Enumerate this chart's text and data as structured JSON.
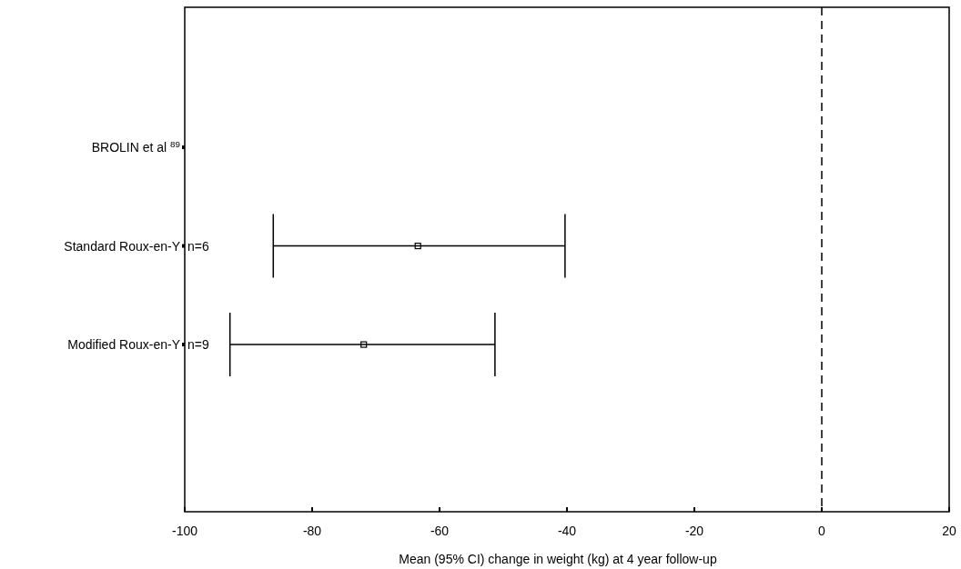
{
  "chart_data": {
    "type": "scatter",
    "orientation": "horizontal",
    "categories": [
      "BROLIN et al $^{89}$",
      "Standard Roux-en-Y",
      "Modified Roux-en-Y"
    ],
    "values": [
      null,
      -63.4,
      -71.9
    ],
    "errors": [
      null,
      [
        -86.1,
        -40.3
      ],
      [
        -92.9,
        -51.3
      ]
    ],
    "color": "#000000",
    "marker": "square",
    "xlim": [
      -100,
      20
    ],
    "xticks": [
      -100,
      -80,
      -60,
      -40,
      -20,
      0,
      20
    ],
    "xlabel": "Mean (95% CI) change in weight (kg) at 4 year follow-up",
    "ref_lines": [
      {
        "axis": "x",
        "value": 0,
        "line_style": "dashed",
        "color": "#000000"
      }
    ],
    "annotations": [
      "n=6",
      "n=9"
    ]
  }
}
